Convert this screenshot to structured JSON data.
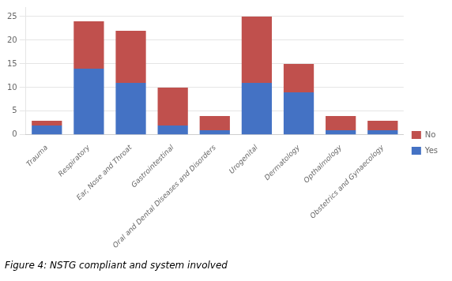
{
  "chart_data": {
    "type": "bar",
    "title": "Figure 4: NSTG compliant and system involved",
    "categories": [
      "Trauma",
      "Respiratory",
      "Ear, Nose and Throat",
      "Gastrointestinal",
      "Oral and Dental Diseases and Disorders",
      "Urogenital",
      "Dermatology",
      "Opthalmology",
      "Obstetrics and Gynaecology"
    ],
    "series": [
      {
        "name": "Yes",
        "color": "#4472C4",
        "values": [
          2,
          14,
          11,
          2,
          1,
          11,
          9,
          1,
          1
        ]
      },
      {
        "name": "No",
        "color": "#C0504D",
        "values": [
          1,
          10,
          11,
          8,
          3,
          14,
          6,
          3,
          2
        ]
      }
    ],
    "stacked": true,
    "ylim": [
      0,
      27
    ],
    "yticks": [
      0,
      5,
      10,
      15,
      20,
      25
    ],
    "grid": true,
    "legend": "right"
  }
}
